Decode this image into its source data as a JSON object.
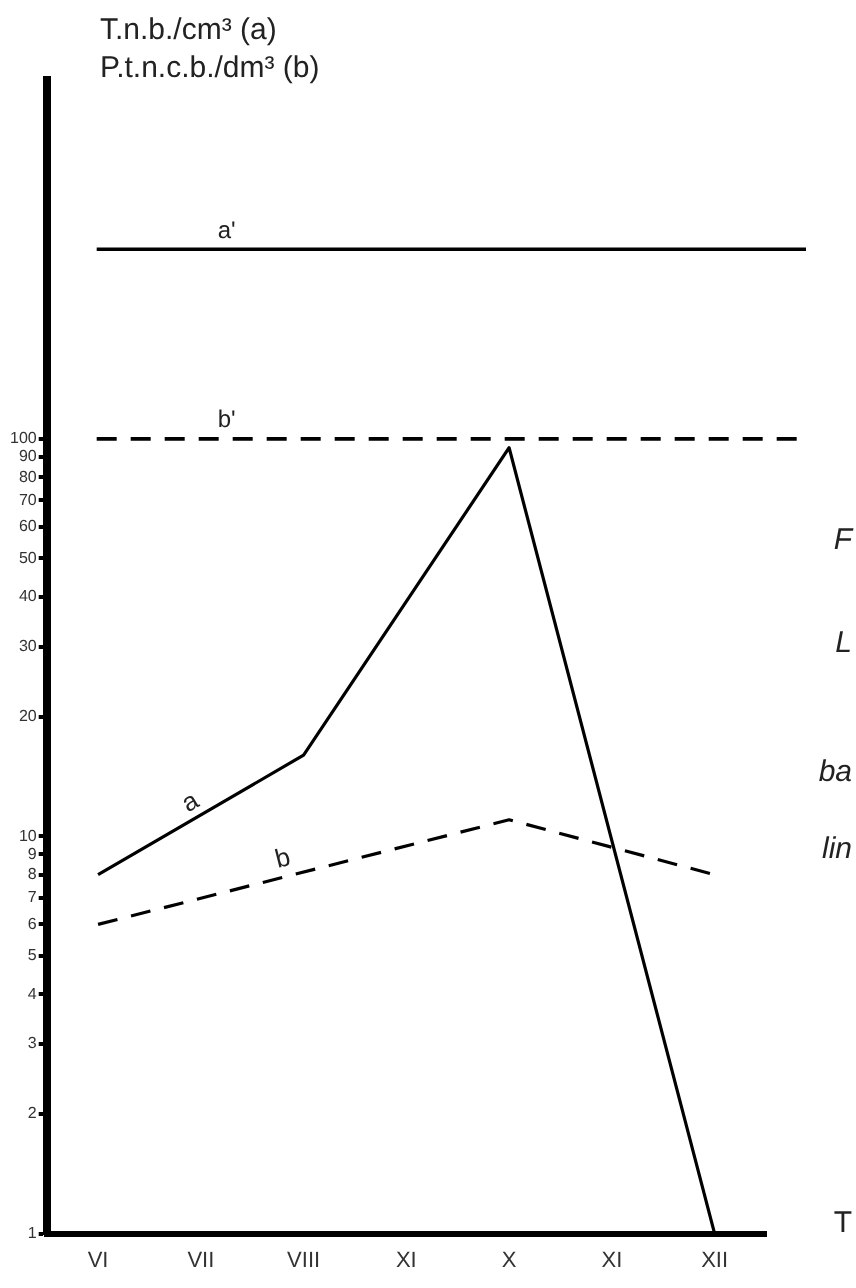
{
  "chart_data": {
    "type": "line",
    "ylabel": "T.n.b./cm³ (a)\nP.t.n.c.b./dm³ (b)",
    "categories": [
      "VI",
      "VII",
      "VIII",
      "XI",
      "X",
      "XI",
      "XII"
    ],
    "series": [
      {
        "name": "a",
        "color": "#000000",
        "line_style": "solid",
        "values": [
          8,
          null,
          16,
          null,
          95,
          null,
          1
        ]
      },
      {
        "name": "b",
        "color": "#000000",
        "line_style": "dashed",
        "values": [
          6,
          null,
          null,
          null,
          11,
          null,
          8
        ]
      }
    ],
    "log": "y",
    "ylim": [
      1,
      800
    ],
    "yticks": [
      1,
      2,
      3,
      4,
      5,
      6,
      7,
      8,
      9,
      10,
      20,
      30,
      40,
      50,
      60,
      70,
      80,
      90,
      100
    ],
    "grid": false,
    "legend": false,
    "marker": "none",
    "ref_lines": [
      {
        "axis": "y",
        "value": 300,
        "label": "a'",
        "line_style": "solid",
        "color": "#000000"
      },
      {
        "axis": "y",
        "value": 100,
        "label": "b'",
        "line_style": "dashed",
        "color": "#000000"
      }
    ],
    "annotations": [
      "F",
      "L",
      "ba",
      "lin",
      "T"
    ]
  }
}
